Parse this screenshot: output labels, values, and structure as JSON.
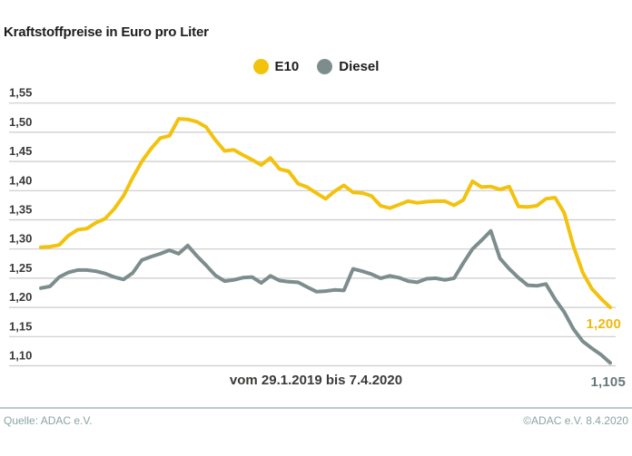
{
  "page": {
    "title": "Kraftstoffpreise in Euro pro Liter"
  },
  "legend": {
    "items": [
      {
        "label": "E10",
        "color": "#f3c20d"
      },
      {
        "label": "Diesel",
        "color": "#7d8d8d"
      }
    ]
  },
  "footer": {
    "source": "Quelle: ADAC e.V.",
    "copyright": "©ADAC e.V. 8.4.2020",
    "text_color": "#8ba3a3",
    "divider_color": "#b9cbcb"
  },
  "chart_data": {
    "type": "line",
    "title": "Kraftstoffpreise in Euro pro Liter",
    "xlabel": "vom 29.1.2019 bis 7.4.2020",
    "ylabel": "",
    "ylim": [
      1.1,
      1.55
    ],
    "grid": true,
    "grid_color": "#cbcbcb",
    "legend_position": "top-center",
    "yticks": [
      {
        "label": "1,55",
        "value": 1.55
      },
      {
        "label": "1,50",
        "value": 1.5
      },
      {
        "label": "1,45",
        "value": 1.45
      },
      {
        "label": "1,40",
        "value": 1.4
      },
      {
        "label": "1,35",
        "value": 1.35
      },
      {
        "label": "1,30",
        "value": 1.3
      },
      {
        "label": "1,25",
        "value": 1.25
      },
      {
        "label": "1,20",
        "value": 1.2
      },
      {
        "label": "1,15",
        "value": 1.15
      },
      {
        "label": "1,10",
        "value": 1.1
      }
    ],
    "series": [
      {
        "name": "E10",
        "color": "#f3c20d",
        "label_color": "#eeb90c",
        "end_label": "1,200",
        "end_value": 1.2,
        "values": [
          1.303,
          1.304,
          1.307,
          1.323,
          1.333,
          1.335,
          1.345,
          1.352,
          1.369,
          1.391,
          1.422,
          1.45,
          1.472,
          1.49,
          1.494,
          1.523,
          1.522,
          1.518,
          1.509,
          1.487,
          1.468,
          1.47,
          1.461,
          1.453,
          1.444,
          1.456,
          1.437,
          1.433,
          1.412,
          1.406,
          1.396,
          1.386,
          1.399,
          1.409,
          1.397,
          1.396,
          1.391,
          1.374,
          1.37,
          1.376,
          1.382,
          1.379,
          1.381,
          1.382,
          1.382,
          1.375,
          1.384,
          1.416,
          1.406,
          1.407,
          1.402,
          1.407,
          1.373,
          1.372,
          1.374,
          1.386,
          1.388,
          1.362,
          1.305,
          1.26,
          1.232,
          1.215,
          1.2
        ]
      },
      {
        "name": "Diesel",
        "color": "#7d8d8d",
        "label_color": "#657879",
        "end_label": "1,105",
        "end_value": 1.105,
        "values": [
          1.233,
          1.236,
          1.252,
          1.26,
          1.264,
          1.264,
          1.262,
          1.258,
          1.252,
          1.248,
          1.259,
          1.281,
          1.287,
          1.292,
          1.298,
          1.292,
          1.306,
          1.288,
          1.272,
          1.255,
          1.245,
          1.247,
          1.251,
          1.252,
          1.242,
          1.254,
          1.246,
          1.244,
          1.243,
          1.235,
          1.227,
          1.228,
          1.23,
          1.229,
          1.266,
          1.262,
          1.257,
          1.25,
          1.254,
          1.251,
          1.245,
          1.243,
          1.249,
          1.25,
          1.247,
          1.25,
          1.276,
          1.3,
          1.315,
          1.331,
          1.284,
          1.266,
          1.251,
          1.238,
          1.237,
          1.24,
          1.214,
          1.192,
          1.163,
          1.142,
          1.13,
          1.119,
          1.105
        ]
      }
    ]
  }
}
